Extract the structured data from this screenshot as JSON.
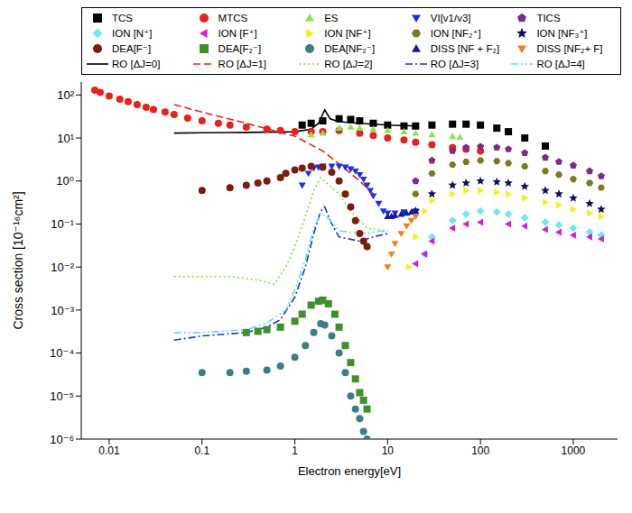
{
  "chart_data": {
    "type": "scatter",
    "log": true,
    "legend": "top",
    "xlabel": "Electron energy[eV]",
    "ylabel": "Cross section [10⁻¹⁶cm²]",
    "xlim": [
      0.005,
      3000
    ],
    "ylim": [
      1e-06,
      200
    ],
    "xticks": [
      0.01,
      0.1,
      1,
      10,
      100,
      1000
    ],
    "yticks": [
      {
        "value": 1e-06,
        "label": "10⁻⁶"
      },
      {
        "value": 1e-05,
        "label": "10⁻⁵"
      },
      {
        "value": 0.0001,
        "label": "10⁻⁴"
      },
      {
        "value": 0.001,
        "label": "10⁻³"
      },
      {
        "value": 0.01,
        "label": "10⁻²"
      },
      {
        "value": 0.1,
        "label": "10⁻¹"
      },
      {
        "value": 1,
        "label": "10⁰"
      },
      {
        "value": 10,
        "label": "10¹"
      },
      {
        "value": 100,
        "label": "10²"
      }
    ],
    "series": [
      {
        "name": "TCS",
        "color": "#000000",
        "marker": "square",
        "x": [
          1.2,
          1.5,
          2,
          3,
          4,
          5,
          7,
          10,
          15,
          20,
          30,
          50,
          70,
          100,
          150,
          200,
          300,
          500
        ],
        "values": [
          20,
          22,
          25,
          28,
          27,
          25,
          22,
          20,
          19,
          19,
          20,
          21,
          21,
          20,
          17,
          14,
          10,
          6.5
        ]
      },
      {
        "name": "MTCS",
        "color": "#e8201e",
        "marker": "circle",
        "x": [
          0.007,
          0.008,
          0.01,
          0.013,
          0.016,
          0.02,
          0.025,
          0.03,
          0.04,
          0.05,
          0.07,
          0.1,
          0.15,
          0.2,
          0.3,
          0.5,
          0.7,
          1,
          1.5,
          2,
          3,
          5,
          7,
          10,
          15,
          20,
          30,
          50,
          70,
          100
        ],
        "values": [
          130,
          115,
          95,
          80,
          70,
          60,
          52,
          46,
          40,
          35,
          29,
          25,
          22,
          20,
          18,
          16,
          15,
          14,
          14,
          14,
          15,
          13,
          11.5,
          10,
          9,
          8,
          7,
          6,
          5.5,
          5
        ]
      },
      {
        "name": "ES",
        "color": "#8ee34a",
        "marker": "triangle-up",
        "x": [
          1.5,
          2,
          3,
          4,
          5,
          7,
          10,
          15,
          20,
          30,
          50,
          60
        ],
        "values": [
          12,
          13,
          17,
          18,
          17,
          16,
          15,
          14,
          13,
          12,
          11,
          10.5
        ]
      },
      {
        "name": "VI[v1/v3]",
        "color": "#1f2fe0",
        "marker": "triangle-down",
        "x": [
          1.2,
          1.4,
          1.6,
          1.8,
          2,
          2.5,
          3,
          3.5,
          4,
          4.5,
          5,
          5.5,
          6,
          6.5,
          7,
          8,
          9,
          10,
          12,
          15,
          20
        ],
        "values": [
          0.8,
          1.5,
          2.0,
          2.1,
          2.2,
          2.2,
          2.2,
          2.1,
          1.9,
          1.7,
          1.4,
          1.1,
          0.8,
          0.6,
          0.45,
          0.3,
          0.2,
          0.18,
          0.18,
          0.19,
          0.2
        ]
      },
      {
        "name": "TICS",
        "color": "#7b2b8a",
        "marker": "pentagon",
        "x": [
          20,
          30,
          50,
          70,
          100,
          150,
          200,
          300,
          500,
          700,
          1000,
          1500,
          2000
        ],
        "values": [
          1,
          3,
          5,
          6,
          6.3,
          6,
          5.5,
          4.5,
          3.5,
          2.8,
          2.3,
          1.7,
          1.3
        ]
      },
      {
        "name": "ION [N⁺]",
        "color": "#6fe8f0",
        "marker": "diamond",
        "x": [
          25,
          30,
          50,
          70,
          100,
          150,
          200,
          300,
          500,
          700,
          1000,
          1500,
          2000
        ],
        "values": [
          0.02,
          0.05,
          0.12,
          0.17,
          0.2,
          0.19,
          0.17,
          0.14,
          0.11,
          0.095,
          0.08,
          0.065,
          0.055
        ]
      },
      {
        "name": "ION [F⁺]",
        "color": "#d11fd6",
        "marker": "triangle-left",
        "x": [
          20,
          25,
          30,
          50,
          70,
          100,
          200,
          300,
          500,
          700,
          1000,
          1500,
          2000
        ],
        "values": [
          0.012,
          0.02,
          0.04,
          0.08,
          0.1,
          0.11,
          0.1,
          0.09,
          0.075,
          0.065,
          0.055,
          0.05,
          0.045
        ]
      },
      {
        "name": "ION [NF⁺]",
        "color": "#f2f20f",
        "marker": "triangle-right",
        "x": [
          17,
          20,
          25,
          30,
          50,
          70,
          100,
          150,
          200,
          300,
          500,
          700,
          1000,
          1500,
          2000
        ],
        "values": [
          0.01,
          0.05,
          0.2,
          0.35,
          0.5,
          0.6,
          0.6,
          0.55,
          0.5,
          0.4,
          0.32,
          0.28,
          0.22,
          0.18,
          0.15
        ]
      },
      {
        "name": "ION [NF₂⁺]",
        "color": "#7a7a1e",
        "marker": "hexagon",
        "x": [
          20,
          30,
          50,
          70,
          100,
          150,
          200,
          300,
          500,
          700,
          1000,
          1500,
          2000
        ],
        "values": [
          0.5,
          1.5,
          2.4,
          2.8,
          3,
          2.9,
          2.6,
          2.2,
          1.7,
          1.4,
          1.1,
          0.9,
          0.7
        ]
      },
      {
        "name": "ION [NF₃⁺]",
        "color": "#10105e",
        "marker": "star",
        "x": [
          20,
          30,
          50,
          70,
          100,
          150,
          200,
          300,
          500,
          700,
          1000,
          1500,
          2000
        ],
        "values": [
          0.2,
          0.5,
          0.8,
          0.9,
          1.0,
          0.95,
          0.9,
          0.75,
          0.6,
          0.5,
          0.4,
          0.3,
          0.22
        ]
      },
      {
        "name": "DEA[F⁻]",
        "color": "#7a1c10",
        "marker": "circle",
        "x": [
          0.1,
          0.2,
          0.3,
          0.4,
          0.5,
          0.7,
          0.8,
          1,
          1.2,
          1.5,
          2,
          2.5,
          3,
          3.5,
          4,
          4.5,
          5,
          5.5,
          6
        ],
        "values": [
          0.6,
          0.7,
          0.8,
          0.9,
          1.0,
          1.2,
          1.5,
          1.8,
          2.0,
          2.2,
          2.1,
          1.6,
          1.0,
          0.5,
          0.25,
          0.12,
          0.06,
          0.04,
          0.03
        ]
      },
      {
        "name": "DEA[F₂⁻]",
        "color": "#3f8f2a",
        "marker": "square",
        "x": [
          0.3,
          0.4,
          0.5,
          0.7,
          1,
          1.2,
          1.5,
          1.8,
          2,
          2.3,
          2.7,
          3,
          3.5,
          4,
          4.5,
          5,
          5.5,
          6
        ],
        "values": [
          0.0003,
          0.00032,
          0.00035,
          0.0004,
          0.00055,
          0.0008,
          0.0013,
          0.0016,
          0.0017,
          0.0014,
          0.0008,
          0.0004,
          0.00015,
          6e-05,
          2.5e-05,
          1.2e-05,
          8e-06,
          5e-06
        ]
      },
      {
        "name": "DEA[NF₂⁻]",
        "color": "#3a7f82",
        "marker": "circle",
        "x": [
          0.1,
          0.2,
          0.3,
          0.5,
          0.7,
          1,
          1.3,
          1.6,
          1.9,
          2.1,
          2.5,
          3,
          3.5,
          4,
          4.5,
          5,
          5.5,
          6
        ],
        "values": [
          3.5e-05,
          3.5e-05,
          3.8e-05,
          4e-05,
          5e-05,
          8e-05,
          0.00015,
          0.0003,
          0.00048,
          0.00045,
          0.00025,
          0.0001,
          3.5e-05,
          1e-05,
          5e-06,
          3e-06,
          1.5e-06,
          1e-06
        ]
      },
      {
        "name": "DISS [NF + F₂]",
        "color": "#15189a",
        "marker": "triangle-up",
        "x": [
          10,
          11,
          12,
          14,
          16,
          18,
          20
        ],
        "values": [
          0.15,
          0.15,
          0.16,
          0.17,
          0.18,
          0.19,
          0.2
        ]
      },
      {
        "name": "DISS [NF₂+ F]",
        "color": "#f08020",
        "marker": "triangle-down",
        "x": [
          10,
          11,
          12,
          14,
          16,
          18,
          20
        ],
        "values": [
          0.01,
          0.02,
          0.035,
          0.06,
          0.09,
          0.12,
          0.15
        ]
      },
      {
        "name": "RO [ΔJ=0]",
        "color": "#000000",
        "type": "line",
        "line_style": "solid",
        "x": [
          0.05,
          0.1,
          0.3,
          1,
          1.5,
          1.8,
          2.1,
          2.4,
          3,
          5,
          10,
          20
        ],
        "values": [
          13,
          13.2,
          13.5,
          14,
          16,
          22,
          45,
          28,
          24,
          22,
          20,
          19
        ]
      },
      {
        "name": "RO [ΔJ=1]",
        "color": "#e8201e",
        "type": "line",
        "line_style": "dashed",
        "x": [
          0.05,
          0.1,
          0.3,
          1,
          2,
          3,
          5,
          7
        ],
        "values": [
          60,
          40,
          22,
          11,
          5,
          2.5,
          1,
          0.5
        ]
      },
      {
        "name": "RO [ΔJ=2]",
        "color": "#7fe050",
        "type": "line",
        "line_style": "dotted",
        "x": [
          0.05,
          0.2,
          0.4,
          0.6,
          0.8,
          1,
          1.3,
          1.6,
          1.9,
          2.2,
          3,
          4,
          6,
          10
        ],
        "values": [
          0.006,
          0.006,
          0.005,
          0.004,
          0.01,
          0.03,
          0.15,
          0.6,
          1.2,
          0.9,
          0.5,
          0.2,
          0.08,
          0.07
        ]
      },
      {
        "name": "RO [ΔJ=3]",
        "color": "#1f35c8",
        "type": "line",
        "line_style": "dashdot",
        "x": [
          0.05,
          0.1,
          0.3,
          0.5,
          0.7,
          1,
          1.3,
          1.6,
          1.9,
          2.1,
          2.5,
          3,
          5,
          7,
          10
        ],
        "values": [
          0.0002,
          0.00025,
          0.0003,
          0.0004,
          0.0006,
          0.002,
          0.01,
          0.06,
          0.2,
          0.25,
          0.1,
          0.05,
          0.04,
          0.05,
          0.06
        ]
      },
      {
        "name": "RO [ΔJ=4]",
        "color": "#66dde0",
        "type": "line",
        "line_style": "dashdotdot",
        "x": [
          0.05,
          0.1,
          0.3,
          0.5,
          0.8,
          1,
          1.3,
          1.6,
          1.9,
          2.2,
          3,
          5,
          10
        ],
        "values": [
          0.0003,
          0.0003,
          0.00035,
          0.0005,
          0.001,
          0.003,
          0.015,
          0.08,
          0.18,
          0.15,
          0.07,
          0.06,
          0.07
        ]
      }
    ]
  }
}
